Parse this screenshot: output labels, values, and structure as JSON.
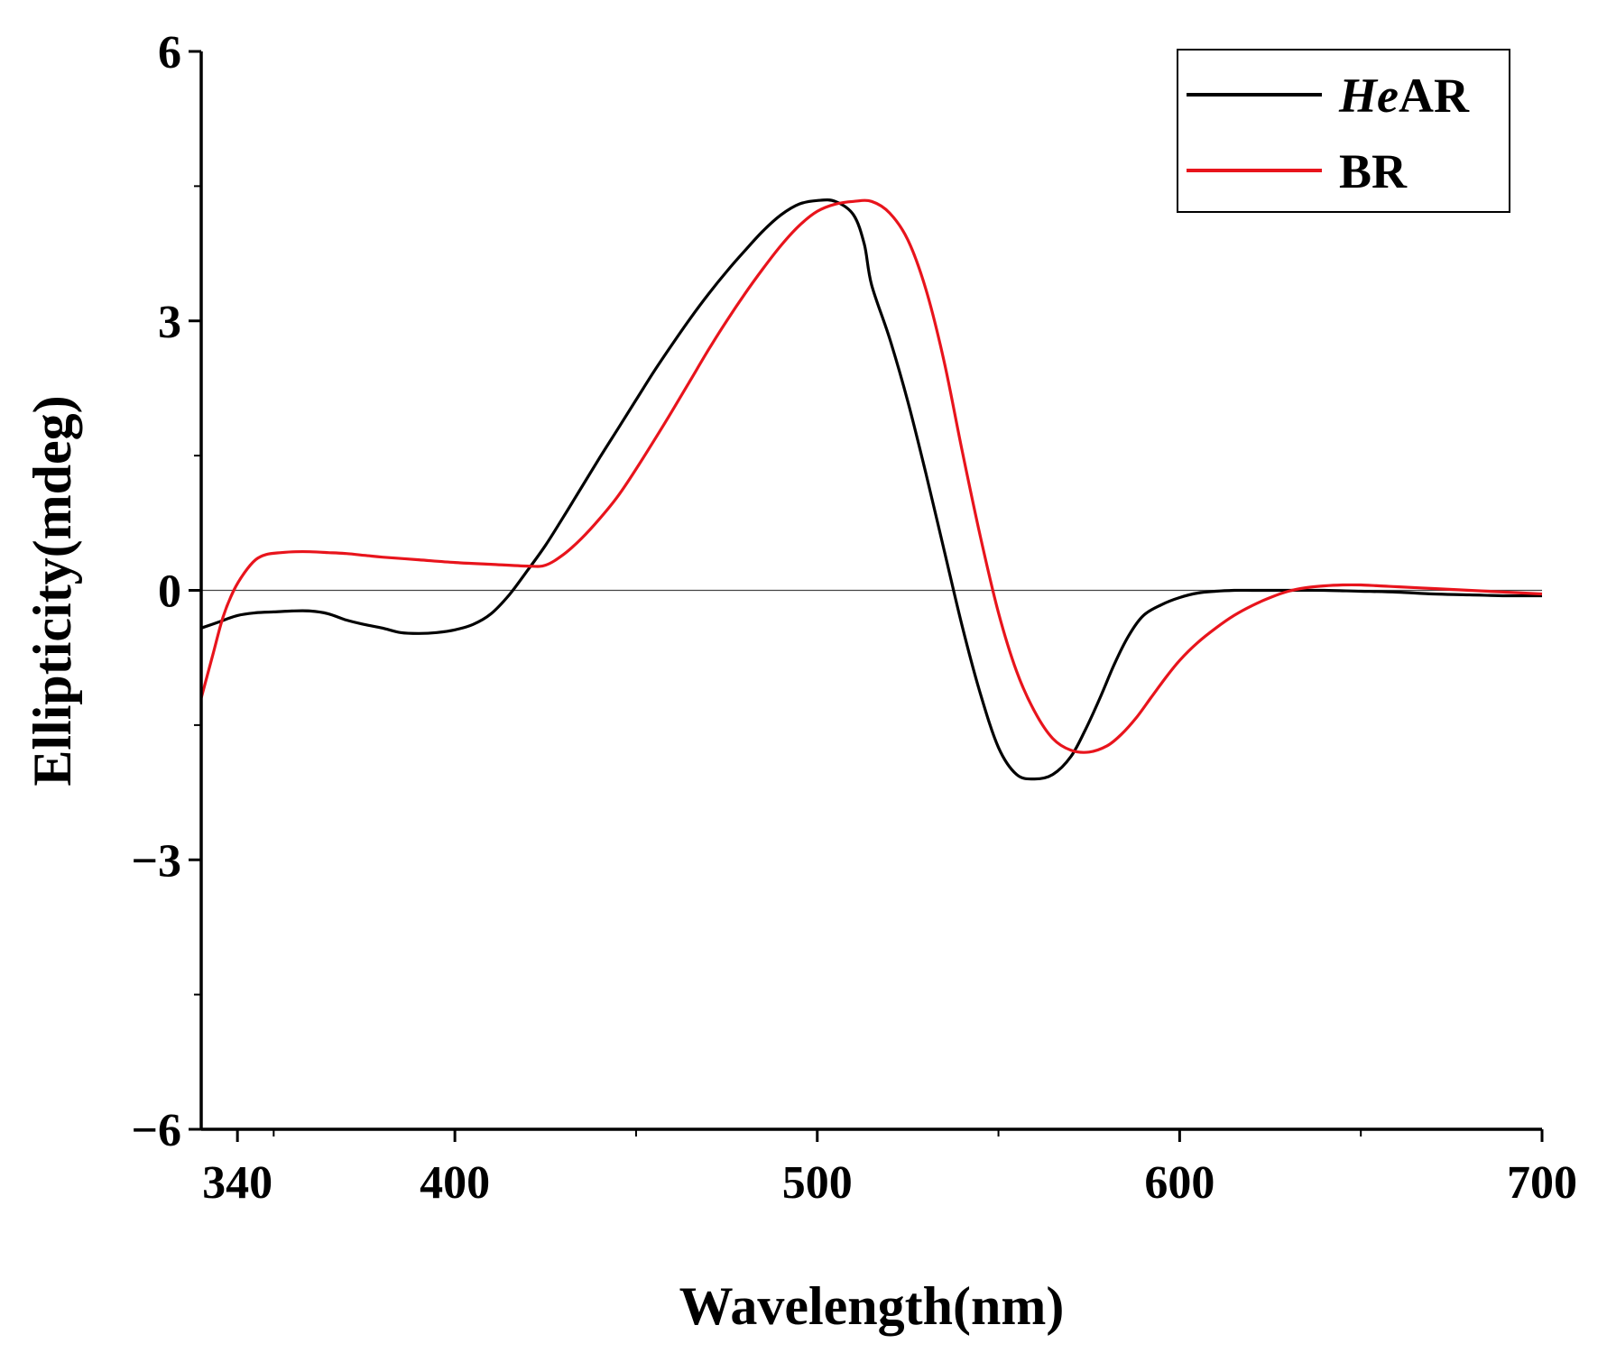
{
  "chart_data": {
    "type": "line",
    "title": "",
    "xlabel": "Wavelength(nm)",
    "ylabel": "Ellipticity(mdeg)",
    "xlim": [
      330,
      700
    ],
    "ylim": [
      -6,
      6
    ],
    "x_ticks": [
      340,
      400,
      500,
      600,
      700
    ],
    "x_minor_ticks": [
      350,
      450,
      550,
      650
    ],
    "y_ticks": [
      -6,
      -3,
      0,
      3,
      6
    ],
    "y_tick_labels": [
      "−6",
      "−3",
      "0",
      "3",
      "6"
    ],
    "y_minor_ticks": [
      -4.5,
      -1.5,
      1.5,
      4.5
    ],
    "zero_line": true,
    "legend": {
      "placement": "top-right",
      "entries": [
        {
          "italic": "He",
          "rest": "AR",
          "color": "#000000"
        },
        {
          "italic": "",
          "rest": "BR",
          "color": "#e8141c"
        }
      ]
    },
    "series": [
      {
        "name": "HeAR",
        "color": "#000000",
        "x": [
          330,
          335,
          340,
          345,
          350,
          355,
          360,
          365,
          370,
          375,
          380,
          385,
          390,
          395,
          400,
          405,
          410,
          415,
          420,
          425,
          430,
          435,
          440,
          445,
          450,
          455,
          460,
          465,
          470,
          475,
          480,
          485,
          490,
          495,
          500,
          505,
          510,
          513,
          515,
          520,
          525,
          530,
          535,
          540,
          545,
          550,
          555,
          560,
          565,
          570,
          574,
          578,
          582,
          586,
          590,
          595,
          600,
          605,
          610,
          615,
          620,
          625,
          630,
          640,
          650,
          660,
          670,
          680,
          690,
          700
        ],
        "y": [
          -0.42,
          -0.35,
          -0.28,
          -0.25,
          -0.24,
          -0.23,
          -0.23,
          -0.26,
          -0.33,
          -0.38,
          -0.42,
          -0.47,
          -0.48,
          -0.47,
          -0.44,
          -0.38,
          -0.26,
          -0.05,
          0.22,
          0.5,
          0.82,
          1.15,
          1.48,
          1.8,
          2.12,
          2.44,
          2.74,
          3.03,
          3.3,
          3.55,
          3.78,
          4.0,
          4.18,
          4.3,
          4.34,
          4.33,
          4.18,
          3.85,
          3.4,
          2.8,
          2.1,
          1.3,
          0.45,
          -0.4,
          -1.15,
          -1.75,
          -2.05,
          -2.1,
          -2.05,
          -1.85,
          -1.55,
          -1.2,
          -0.82,
          -0.5,
          -0.28,
          -0.16,
          -0.08,
          -0.03,
          -0.01,
          0.0,
          0.0,
          0.0,
          0.0,
          0.0,
          -0.01,
          -0.02,
          -0.04,
          -0.05,
          -0.06,
          -0.06
        ]
      },
      {
        "name": "BR",
        "color": "#e8141c",
        "x": [
          330,
          333,
          336,
          339,
          342,
          345,
          348,
          352,
          356,
          360,
          365,
          370,
          375,
          380,
          390,
          400,
          410,
          420,
          425,
          430,
          435,
          440,
          445,
          450,
          455,
          460,
          465,
          470,
          475,
          480,
          485,
          490,
          495,
          500,
          505,
          510,
          515,
          520,
          525,
          530,
          535,
          540,
          545,
          550,
          555,
          560,
          565,
          570,
          575,
          580,
          584,
          588,
          592,
          596,
          600,
          605,
          610,
          615,
          620,
          625,
          630,
          635,
          640,
          645,
          650,
          655,
          660,
          670,
          680,
          690,
          700
        ],
        "y": [
          -1.2,
          -0.75,
          -0.3,
          0.0,
          0.2,
          0.34,
          0.4,
          0.42,
          0.43,
          0.43,
          0.42,
          0.41,
          0.39,
          0.37,
          0.34,
          0.31,
          0.29,
          0.27,
          0.28,
          0.4,
          0.58,
          0.8,
          1.05,
          1.35,
          1.67,
          2.0,
          2.34,
          2.68,
          3.0,
          3.3,
          3.58,
          3.84,
          4.06,
          4.22,
          4.3,
          4.33,
          4.33,
          4.2,
          3.9,
          3.35,
          2.55,
          1.55,
          0.6,
          -0.25,
          -0.9,
          -1.35,
          -1.65,
          -1.78,
          -1.8,
          -1.73,
          -1.6,
          -1.42,
          -1.2,
          -0.98,
          -0.78,
          -0.58,
          -0.42,
          -0.28,
          -0.17,
          -0.08,
          -0.01,
          0.03,
          0.05,
          0.06,
          0.06,
          0.05,
          0.04,
          0.02,
          0.0,
          -0.02,
          -0.04
        ]
      }
    ]
  }
}
